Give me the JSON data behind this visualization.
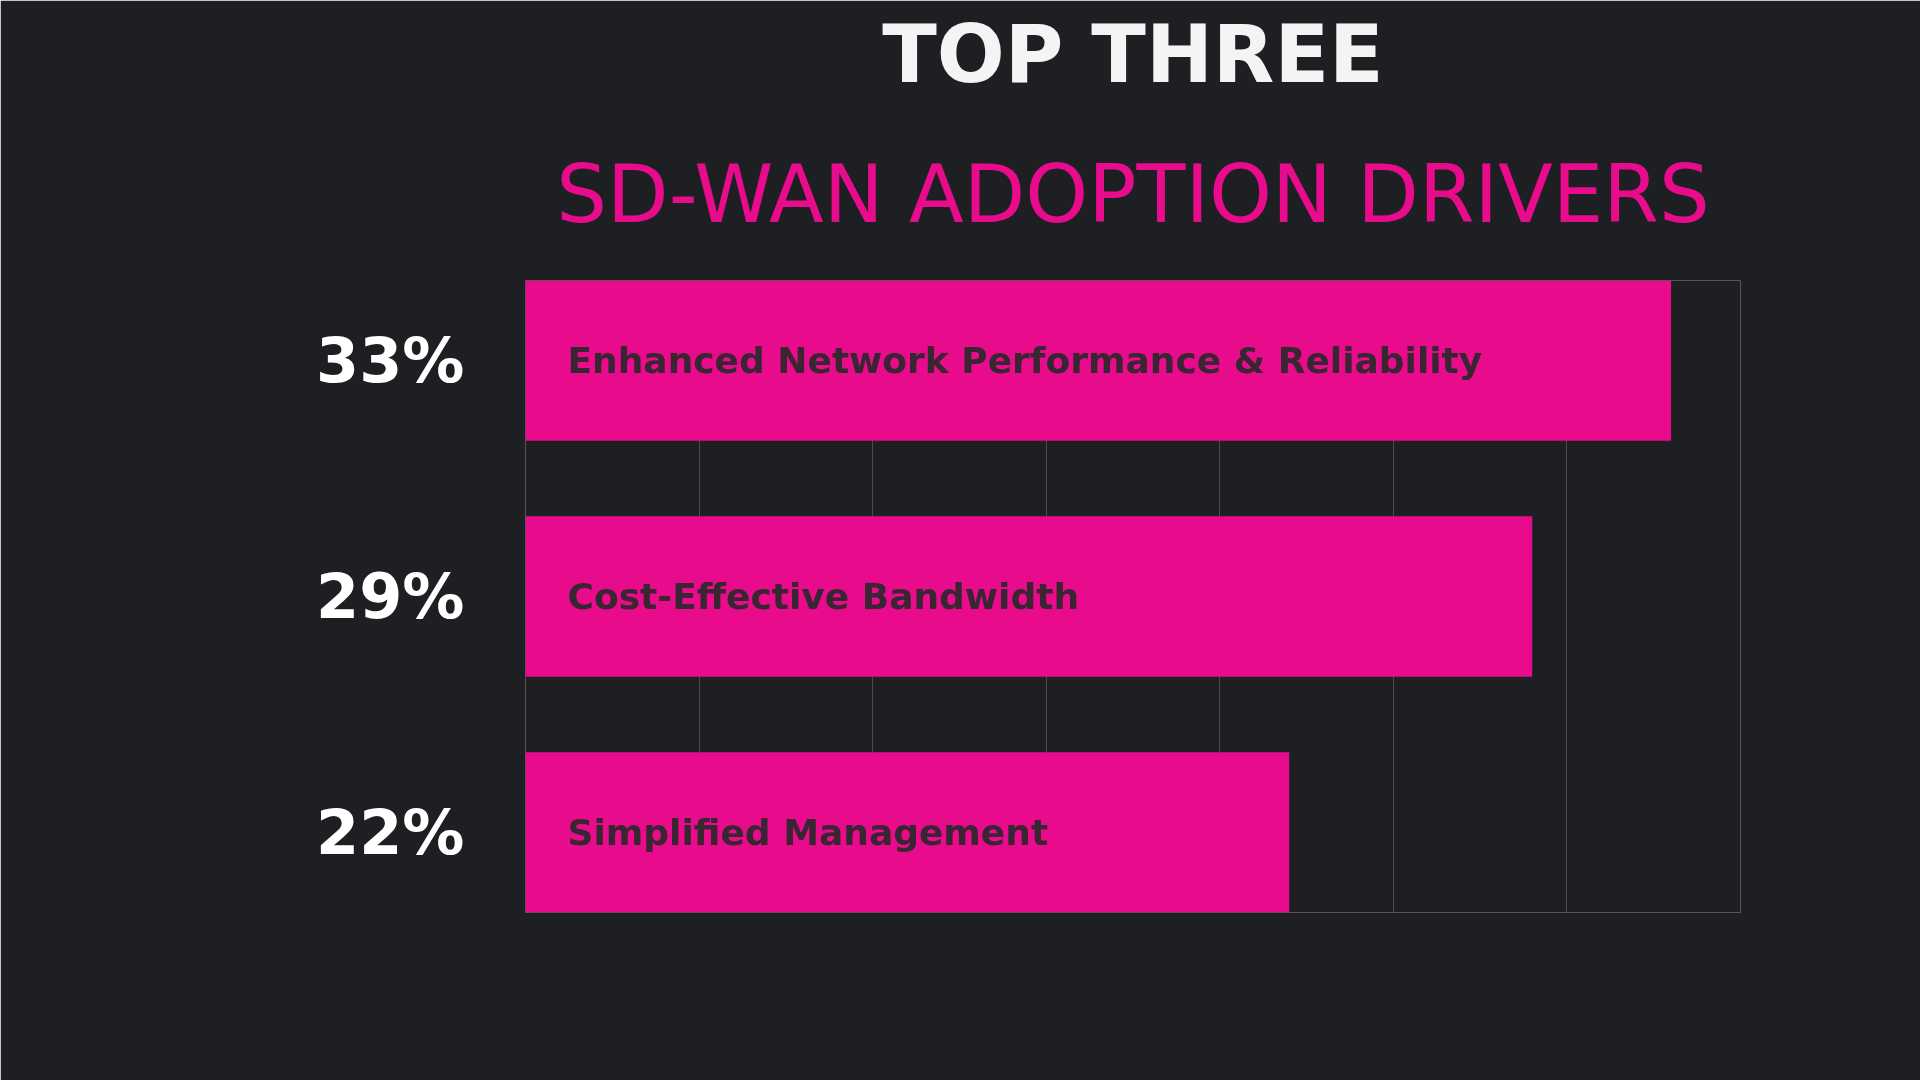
{
  "chart_data": {
    "type": "bar",
    "orientation": "horizontal",
    "title": "TOP THREE",
    "subtitle": "SD-WAN ADOPTION DRIVERS",
    "categories": [
      "Enhanced Network Performance & Reliability",
      "Cost-Effective Bandwidth",
      "Simplified Management"
    ],
    "values": [
      33,
      29,
      22
    ],
    "color": "#e80c8c",
    "value_labels": [
      "33%",
      "29%",
      "22%"
    ],
    "xlim": [
      0,
      35
    ],
    "xticks": [
      {
        "value": 0,
        "label": null
      },
      {
        "value": 5,
        "label": null
      },
      {
        "value": 10,
        "label": null
      },
      {
        "value": 15,
        "label": null
      },
      {
        "value": 20,
        "label": null
      },
      {
        "value": 25,
        "label": null
      },
      {
        "value": 30,
        "label": null
      },
      {
        "value": 35,
        "label": null
      }
    ],
    "grid": "x",
    "tick_labels": false
  }
}
